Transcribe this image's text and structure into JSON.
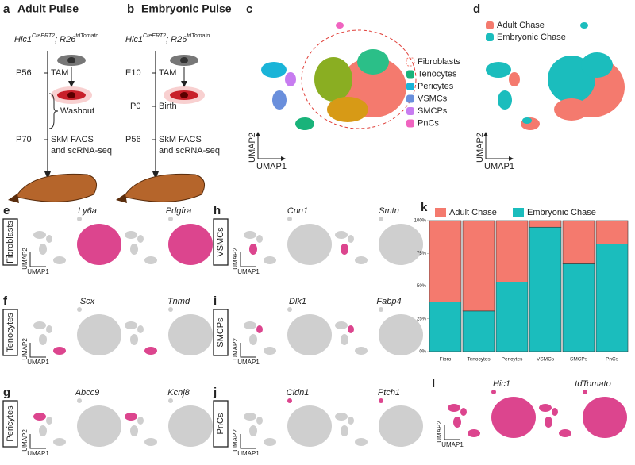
{
  "panels": {
    "a": {
      "letter": "a",
      "title": "Adult Pulse",
      "genotype": [
        "Hic1",
        "CreERT2",
        "; R26",
        "tdTomato"
      ],
      "steps": [
        [
          "P56",
          "TAM"
        ],
        [
          "P70",
          "SkM FACS"
        ]
      ],
      "washout": "Washout",
      "readout": "and scRNA-seq"
    },
    "b": {
      "letter": "b",
      "title": "Embryonic Pulse",
      "genotype": [
        "Hic1",
        "CreERT2",
        "; R26",
        "tdTomato"
      ],
      "steps": [
        [
          "E10",
          "TAM"
        ],
        [
          "P0",
          "Birth"
        ],
        [
          "P56",
          "SkM FACS"
        ]
      ],
      "readout": "and scRNA-seq"
    },
    "c": {
      "letter": "c",
      "legend": [
        {
          "name": "Fibroblasts",
          "color": "#f47a6e"
        },
        {
          "name": "Tenocytes",
          "color": "#19b37a"
        },
        {
          "name": "Pericytes",
          "color": "#1ab4d8"
        },
        {
          "name": "VSMCs",
          "color": "#6a8fdc"
        },
        {
          "name": "SMCPs",
          "color": "#c77cf0"
        },
        {
          "name": "PnCs",
          "color": "#f064c0"
        }
      ]
    },
    "d": {
      "letter": "d",
      "legend": [
        {
          "name": "Adult Chase",
          "color": "#f47a6e"
        },
        {
          "name": "Embryonic Chase",
          "color": "#1bbdbd"
        }
      ]
    },
    "umap_x": "UMAP1",
    "umap_y": "UMAP2",
    "features": [
      {
        "letter": "e",
        "cell_type": "Fibroblasts",
        "genes": [
          "Ly6a",
          "Pdgfra"
        ]
      },
      {
        "letter": "f",
        "cell_type": "Tenocytes",
        "genes": [
          "Scx",
          "Tnmd"
        ]
      },
      {
        "letter": "g",
        "cell_type": "Pericytes",
        "genes": [
          "Abcc9",
          "Kcnj8"
        ]
      },
      {
        "letter": "h",
        "cell_type": "VSMCs",
        "genes": [
          "Cnn1",
          "Smtn"
        ]
      },
      {
        "letter": "i",
        "cell_type": "SMCPs",
        "genes": [
          "Dlk1",
          "Fabp4"
        ]
      },
      {
        "letter": "j",
        "cell_type": "PnCs",
        "genes": [
          "Cldn1",
          "Ptch1"
        ]
      },
      {
        "letter": "l",
        "genes": [
          "Hic1",
          "tdTomato"
        ]
      }
    ]
  },
  "chart_data": {
    "type": "bar",
    "stacked": true,
    "letter": "k",
    "categories": [
      "Fibro",
      "Tenocytes",
      "Pericytes",
      "VSMCs",
      "SMCPs",
      "PnCs"
    ],
    "series": [
      {
        "name": "Adult Chase",
        "color": "#f47a6e",
        "values": [
          62,
          69,
          47,
          5,
          33,
          18
        ]
      },
      {
        "name": "Embryonic Chase",
        "color": "#1bbdbd",
        "values": [
          38,
          31,
          53,
          95,
          67,
          82
        ]
      }
    ],
    "ylim": [
      0,
      100
    ],
    "yticks": [
      {
        "value": 0,
        "label": "0%"
      },
      {
        "value": 25,
        "label": "25%"
      },
      {
        "value": 50,
        "label": "50%"
      },
      {
        "value": 75,
        "label": "75%"
      },
      {
        "value": 100,
        "label": "100%"
      }
    ]
  }
}
